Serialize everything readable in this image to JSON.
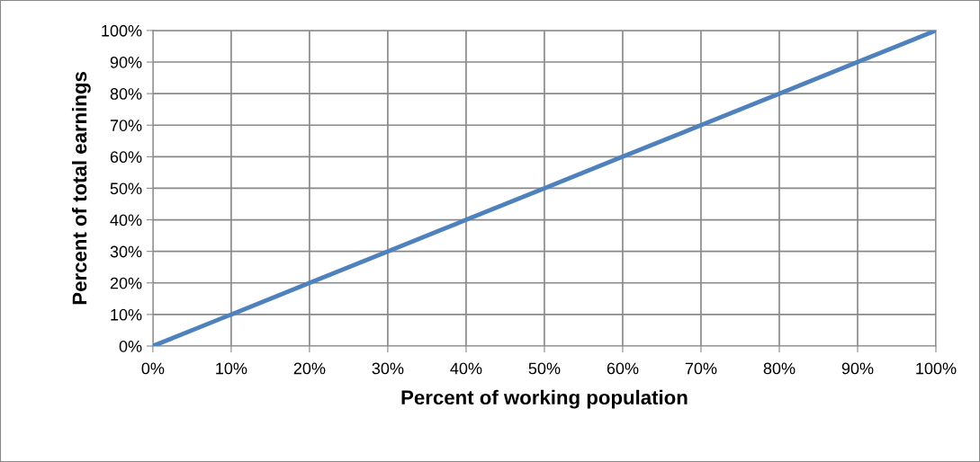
{
  "chart_data": {
    "type": "line",
    "xlabel": "Percent of working population",
    "ylabel": "Percent of total earnings",
    "x": [
      0,
      10,
      20,
      30,
      40,
      50,
      60,
      70,
      80,
      90,
      100
    ],
    "series": [
      {
        "color": "#4f81bd",
        "values": [
          0,
          10,
          20,
          30,
          40,
          50,
          60,
          70,
          80,
          90,
          100
        ]
      }
    ],
    "xlim": [
      0,
      100
    ],
    "ylim": [
      0,
      100
    ],
    "xticks": [
      {
        "value": 0,
        "label": "0%"
      },
      {
        "value": 10,
        "label": "10%"
      },
      {
        "value": 20,
        "label": "20%"
      },
      {
        "value": 30,
        "label": "30%"
      },
      {
        "value": 40,
        "label": "40%"
      },
      {
        "value": 50,
        "label": "50%"
      },
      {
        "value": 60,
        "label": "60%"
      },
      {
        "value": 70,
        "label": "70%"
      },
      {
        "value": 80,
        "label": "80%"
      },
      {
        "value": 90,
        "label": "90%"
      },
      {
        "value": 100,
        "label": "100%"
      }
    ],
    "yticks": [
      {
        "value": 0,
        "label": "0%"
      },
      {
        "value": 10,
        "label": "10%"
      },
      {
        "value": 20,
        "label": "20%"
      },
      {
        "value": 30,
        "label": "30%"
      },
      {
        "value": 40,
        "label": "40%"
      },
      {
        "value": 50,
        "label": "50%"
      },
      {
        "value": 60,
        "label": "60%"
      },
      {
        "value": 70,
        "label": "70%"
      },
      {
        "value": 80,
        "label": "80%"
      },
      {
        "value": 90,
        "label": "90%"
      },
      {
        "value": 100,
        "label": "100%"
      }
    ],
    "grid": true,
    "marker": "none",
    "line_style": "solid"
  }
}
